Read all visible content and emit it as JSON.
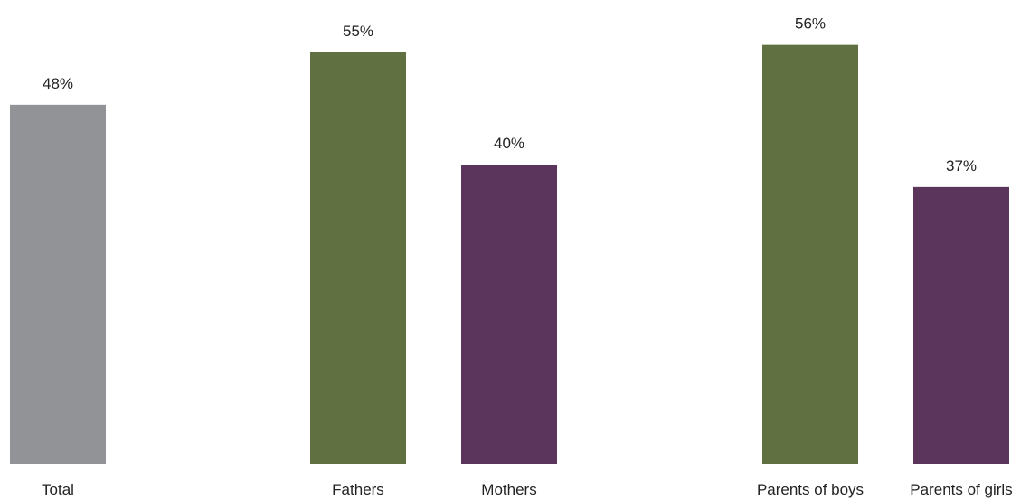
{
  "chart_data": {
    "type": "bar",
    "categories": [
      "Total",
      "Fathers",
      "Mothers",
      "Parents of boys",
      "Parents of girls"
    ],
    "values": [
      48,
      55,
      40,
      56,
      37
    ],
    "value_labels": [
      "48%",
      "55%",
      "40%",
      "56%",
      "37%"
    ],
    "colors": [
      "#929396",
      "#617040",
      "#5c355c",
      "#617040",
      "#5c355c"
    ],
    "ylim": [
      0,
      62
    ],
    "grid": false,
    "title": "",
    "xlabel": "",
    "ylabel": ""
  }
}
